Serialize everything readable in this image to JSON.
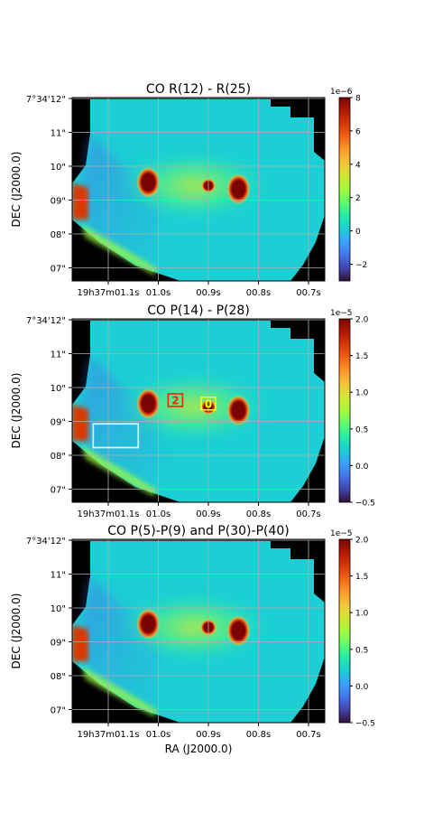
{
  "figure": {
    "xlabel": "RA (J2000.0)",
    "ylabel": "DEC (J2000.0)"
  },
  "colormap": [
    "#30123b",
    "#4145ab",
    "#4675ed",
    "#39a2fc",
    "#1bcfd4",
    "#24eca6",
    "#61fc6c",
    "#a4fc3b",
    "#d1e834",
    "#f3c63a",
    "#fe9b2d",
    "#f36315",
    "#d93806",
    "#b11901",
    "#7a0402"
  ],
  "colors": {
    "masked": "#000000",
    "grid": "#b0b0b0",
    "region_white": "#ffffff",
    "marker_red": "#ff2000",
    "marker_yellow": "#ffff00"
  },
  "chart_data": [
    {
      "type": "heatmap",
      "title": "CO R(12) - R(25)",
      "xlabel": "",
      "ylabel": "DEC (J2000.0)",
      "x_ticks": [
        "19h37m01.1s",
        "01.0s",
        "00.9s",
        "00.8s",
        "00.7s"
      ],
      "y_ticks": [
        "7°34'12\"",
        "11\"",
        "10\"",
        "09\"",
        "08\"",
        "07\""
      ],
      "colorbar": {
        "ticks": [
          "−2",
          "0",
          "2",
          "4",
          "6",
          "8"
        ],
        "tick_values": [
          -2,
          0,
          2,
          4,
          6,
          8
        ],
        "multiplier": "1e−6",
        "range": [
          -3,
          8
        ]
      },
      "background_value": 0.5,
      "sources": [
        {
          "ra_s": 1.02,
          "dec_arcsec": 9.5,
          "peak": 8
        },
        {
          "ra_s": 0.9,
          "dec_arcsec": 9.4,
          "peak": 7
        },
        {
          "ra_s": 0.84,
          "dec_arcsec": 9.3,
          "peak": 8
        }
      ],
      "grid": true,
      "markers": []
    },
    {
      "type": "heatmap",
      "title": "CO P(14) - P(28)",
      "xlabel": "",
      "ylabel": "DEC (J2000.0)",
      "x_ticks": [
        "19h37m01.1s",
        "01.0s",
        "00.9s",
        "00.8s",
        "00.7s"
      ],
      "y_ticks": [
        "7°34'12\"",
        "11\"",
        "10\"",
        "09\"",
        "08\"",
        "07\""
      ],
      "colorbar": {
        "ticks": [
          "−0.5",
          "0.0",
          "0.5",
          "1.0",
          "1.5",
          "2.0"
        ],
        "tick_values": [
          -0.5,
          0,
          0.5,
          1.0,
          1.5,
          2.0
        ],
        "multiplier": "1e−5",
        "range": [
          -0.5,
          2.0
        ]
      },
      "background_value": 0.25,
      "sources": [
        {
          "ra_s": 1.02,
          "dec_arcsec": 9.5,
          "peak": 2
        },
        {
          "ra_s": 0.9,
          "dec_arcsec": 9.4,
          "peak": 1.9
        },
        {
          "ra_s": 0.84,
          "dec_arcsec": 9.3,
          "peak": 2
        }
      ],
      "grid": true,
      "markers": [
        {
          "label": "2",
          "color": "red",
          "ra_s": 0.966,
          "dec_arcsec": 9.6
        },
        {
          "label": "0",
          "color": "yellow",
          "ra_s": 0.9,
          "dec_arcsec": 9.5
        }
      ],
      "box": {
        "ra_s": [
          1.13,
          1.04
        ],
        "dec_arcsec": [
          8.9,
          8.2
        ]
      }
    },
    {
      "type": "heatmap",
      "title": "CO P(5)-P(9) and P(30)-P(40)",
      "xlabel": "RA (J2000.0)",
      "ylabel": "DEC (J2000.0)",
      "x_ticks": [
        "19h37m01.1s",
        "01.0s",
        "00.9s",
        "00.8s",
        "00.7s"
      ],
      "y_ticks": [
        "7°34'12\"",
        "11\"",
        "10\"",
        "09\"",
        "08\"",
        "07\""
      ],
      "colorbar": {
        "ticks": [
          "−0.5",
          "0.0",
          "0.5",
          "1.0",
          "1.5",
          "2.0"
        ],
        "tick_values": [
          -0.5,
          0,
          0.5,
          1.0,
          1.5,
          2.0
        ],
        "multiplier": "1e−5",
        "range": [
          -0.5,
          2.0
        ]
      },
      "background_value": 0.3,
      "sources": [
        {
          "ra_s": 1.02,
          "dec_arcsec": 9.5,
          "peak": 2
        },
        {
          "ra_s": 0.9,
          "dec_arcsec": 9.4,
          "peak": 2
        },
        {
          "ra_s": 0.84,
          "dec_arcsec": 9.3,
          "peak": 2
        }
      ],
      "grid": true,
      "markers": []
    }
  ]
}
